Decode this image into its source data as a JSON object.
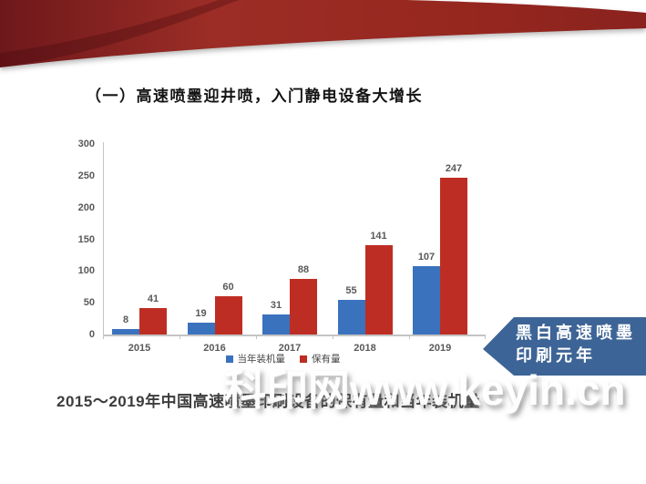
{
  "slide_title": "（一）高速喷墨迎井喷，入门静电设备大增长",
  "caption": "2015～2019年中国高速喷墨印刷设备的保有量和当年装机量",
  "callout": {
    "line1": "黑白高速喷墨",
    "line2": "印刷元年",
    "bg_color": "#3d6496"
  },
  "watermark": "科印网www.keyin.cn",
  "banner_color": "#9c2d26",
  "chart_data": {
    "type": "bar",
    "title": "",
    "xlabel": "",
    "ylabel": "",
    "categories": [
      "2015",
      "2016",
      "2017",
      "2018",
      "2019"
    ],
    "series": [
      {
        "name": "当年装机量",
        "color": "#3a72be",
        "values": [
          8,
          19,
          31,
          55,
          107
        ]
      },
      {
        "name": "保有量",
        "color": "#be2d23",
        "values": [
          41,
          60,
          88,
          141,
          247
        ]
      }
    ],
    "ylim": [
      0,
      300
    ],
    "yticks": [
      0,
      50,
      100,
      150,
      200,
      250,
      300
    ],
    "legend_position": "bottom",
    "grid": false,
    "tick_color": "#595959",
    "axis_color": "#c4c4c4",
    "value_label_color": "#595959"
  }
}
